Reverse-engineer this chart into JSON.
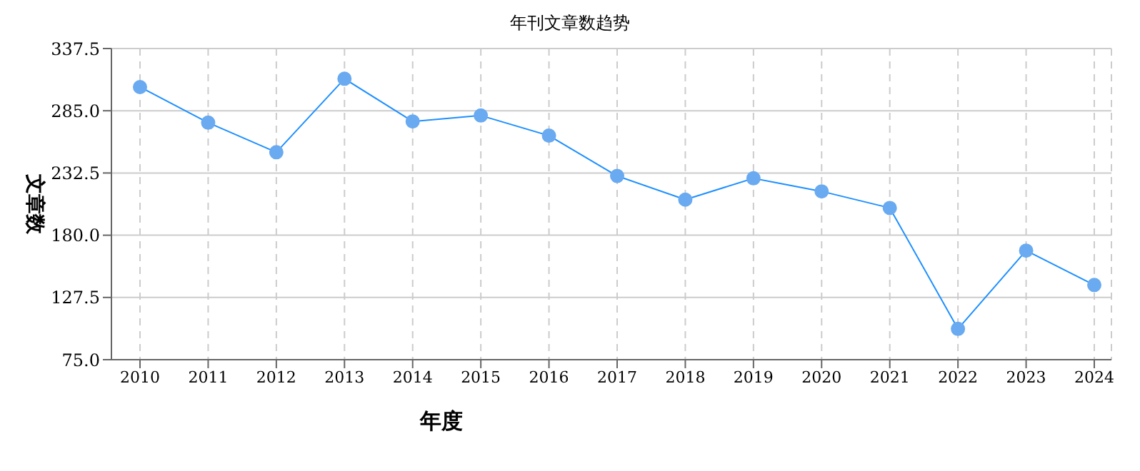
{
  "chart_data": {
    "type": "line",
    "title": "年刊文章数趋势",
    "xlabel": "年度",
    "ylabel": "文章数",
    "categories": [
      "2010",
      "2011",
      "2012",
      "2013",
      "2014",
      "2015",
      "2016",
      "2017",
      "2018",
      "2019",
      "2020",
      "2021",
      "2022",
      "2023",
      "2024"
    ],
    "series": [
      {
        "color": "#1e90ff",
        "values": [
          305,
          275,
          250,
          312,
          276,
          281,
          264,
          230,
          210,
          228,
          217,
          203,
          101,
          167,
          138
        ]
      }
    ],
    "ylim": [
      75,
      337.5
    ],
    "yticks": [
      {
        "value": 75,
        "label": "75.0"
      },
      127.5,
      {
        "value": 180,
        "label": "180.0"
      },
      232.5,
      {
        "value": 285,
        "label": "285.0"
      },
      337.5
    ],
    "grid": true,
    "marker": "circle",
    "line_style": "solid"
  }
}
